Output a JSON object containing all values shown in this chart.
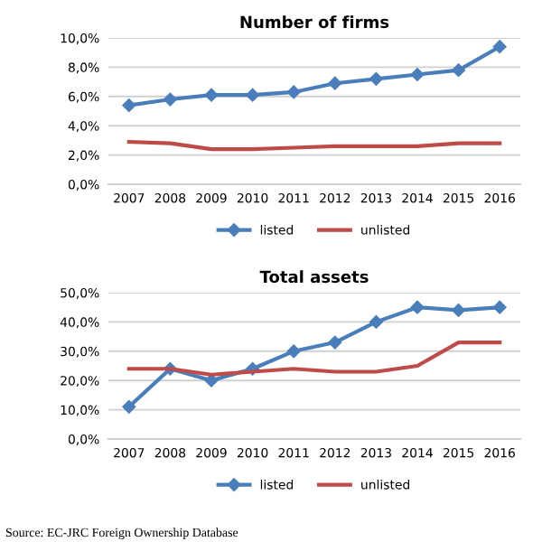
{
  "chart_data": [
    {
      "type": "line",
      "title": "Number of firms",
      "categories": [
        "2007",
        "2008",
        "2009",
        "2010",
        "2011",
        "2012",
        "2013",
        "2014",
        "2015",
        "2016"
      ],
      "series": [
        {
          "name": "listed",
          "color": "#4a7ebb",
          "marker": "diamond",
          "values": [
            5.4,
            5.8,
            6.1,
            6.1,
            6.3,
            6.9,
            7.2,
            7.5,
            7.8,
            9.4
          ]
        },
        {
          "name": "unlisted",
          "color": "#be4b48",
          "marker": "none",
          "values": [
            2.9,
            2.8,
            2.4,
            2.4,
            2.5,
            2.6,
            2.6,
            2.6,
            2.8,
            2.8
          ]
        }
      ],
      "ylim": [
        0,
        10
      ],
      "yticks": [
        {
          "value": 0,
          "label": "0,0%"
        },
        {
          "value": 2,
          "label": "2,0%"
        },
        {
          "value": 4,
          "label": "4,0%"
        },
        {
          "value": 6,
          "label": "6,0%"
        },
        {
          "value": 8,
          "label": "8,0%"
        },
        {
          "value": 10,
          "label": "10,0%"
        }
      ],
      "grid": "y",
      "legend": "bottom"
    },
    {
      "type": "line",
      "title": "Total assets",
      "categories": [
        "2007",
        "2008",
        "2009",
        "2010",
        "2011",
        "2012",
        "2013",
        "2014",
        "2015",
        "2016"
      ],
      "series": [
        {
          "name": "listed",
          "color": "#4a7ebb",
          "marker": "diamond",
          "values": [
            11,
            24,
            20,
            24,
            30,
            33,
            40,
            45,
            44,
            45
          ]
        },
        {
          "name": "unlisted",
          "color": "#be4b48",
          "marker": "none",
          "values": [
            24,
            24,
            22,
            23,
            24,
            23,
            23,
            25,
            33,
            33
          ]
        }
      ],
      "ylim": [
        0,
        50
      ],
      "yticks": [
        {
          "value": 0,
          "label": "0,0%"
        },
        {
          "value": 10,
          "label": "10,0%"
        },
        {
          "value": 20,
          "label": "20,0%"
        },
        {
          "value": 30,
          "label": "30,0%"
        },
        {
          "value": 40,
          "label": "40,0%"
        },
        {
          "value": 50,
          "label": "50,0%"
        }
      ],
      "grid": "y",
      "legend": "bottom",
      "annotations": [
        "Source: EC-JRC Foreign Ownership Database"
      ]
    }
  ]
}
